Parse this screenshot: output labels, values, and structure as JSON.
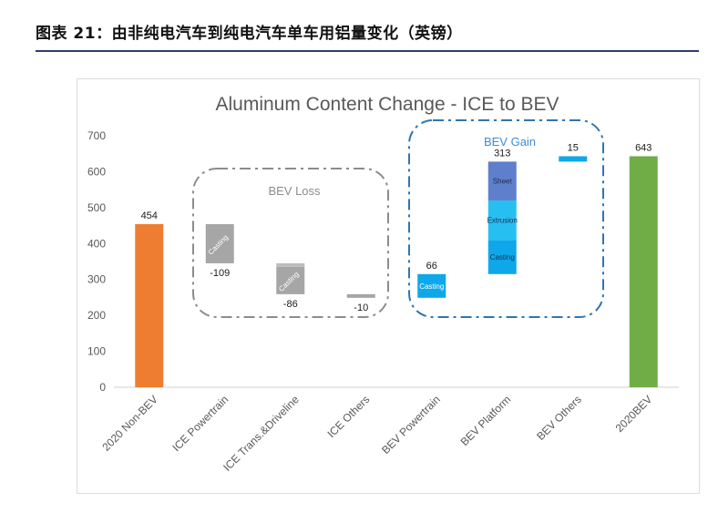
{
  "figure_title": "图表 21：由非纯电汽车到纯电汽车单车用铝量变化（英镑）",
  "chart_data": {
    "type": "bar",
    "subtype": "waterfall",
    "title": "Aluminum Content Change - ICE to BEV",
    "xlabel": "",
    "ylabel": "",
    "ylim": [
      0,
      700
    ],
    "yticks": [
      0,
      100,
      200,
      300,
      400,
      500,
      600,
      700
    ],
    "grid": false,
    "categories": [
      "2020 Non-BEV",
      "ICE Powertrain",
      "ICE Trans.&Driveline",
      "ICE Others",
      "BEV Powertrain",
      "BEV Platform",
      "BEV Others",
      "2020BEV"
    ],
    "bars": [
      {
        "category": "2020 Non-BEV",
        "start": 0,
        "end": 454,
        "label": "454",
        "kind": "total",
        "color": "#ee7d31"
      },
      {
        "category": "ICE Powertrain",
        "start": 345,
        "end": 454,
        "label": "-109",
        "kind": "loss",
        "color": "#a6a6a6",
        "segments": [
          {
            "name": "Casting",
            "start": 345,
            "end": 454
          }
        ]
      },
      {
        "category": "ICE Trans.&Driveline",
        "start": 259,
        "end": 345,
        "label": "-86",
        "kind": "loss",
        "color": "#a6a6a6",
        "segments": [
          {
            "name": "Casting",
            "start": 259,
            "end": 335
          },
          {
            "name": "",
            "start": 335,
            "end": 345
          }
        ]
      },
      {
        "category": "ICE Others",
        "start": 249,
        "end": 259,
        "label": "-10",
        "kind": "loss",
        "color": "#a6a6a6"
      },
      {
        "category": "BEV Powertrain",
        "start": 249,
        "end": 315,
        "label": "66",
        "kind": "gain",
        "color": "#0ea8ea",
        "segments": [
          {
            "name": "Casting",
            "start": 249,
            "end": 315
          }
        ]
      },
      {
        "category": "BEV Platform",
        "start": 315,
        "end": 628,
        "label": "313",
        "kind": "gain",
        "color": "#0ea8ea",
        "segments": [
          {
            "name": "Casting",
            "start": 315,
            "end": 410,
            "color": "#0ea8ea"
          },
          {
            "name": "Extrusion",
            "start": 410,
            "end": 520,
            "color": "#27bff2"
          },
          {
            "name": "Sheet",
            "start": 520,
            "end": 628,
            "color": "#5f7fcc"
          }
        ]
      },
      {
        "category": "BEV Others",
        "start": 628,
        "end": 643,
        "label": "15",
        "kind": "gain",
        "color": "#0ea8ea"
      },
      {
        "category": "2020BEV",
        "start": 0,
        "end": 643,
        "label": "643",
        "kind": "total",
        "color": "#70ad47"
      }
    ],
    "groups": [
      {
        "label": "BEV Loss",
        "color": "#8c8c8c",
        "categories": [
          "ICE Powertrain",
          "ICE Trans.&Driveline",
          "ICE Others"
        ]
      },
      {
        "label": "BEV Gain",
        "color": "#2e75b6",
        "categories": [
          "BEV Powertrain",
          "BEV Platform",
          "BEV Others"
        ]
      }
    ]
  }
}
